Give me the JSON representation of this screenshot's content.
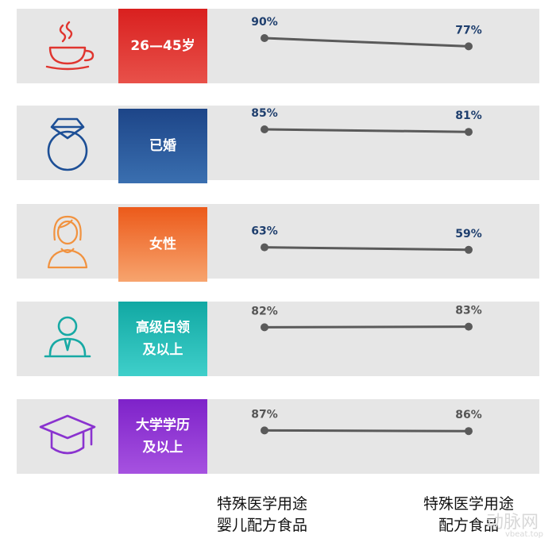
{
  "chart_data": {
    "type": "line",
    "x": [
      "特殊医学用途\n婴儿配方食品",
      "特殊医学用途\n配方食品"
    ],
    "ylim": [
      0,
      100
    ],
    "categories": [
      {
        "label": "26—45岁",
        "icon": "teacup-icon",
        "color_top": "#d9201f",
        "color_bottom": "#e8514a",
        "values": [
          90,
          77
        ],
        "labels": [
          "90%",
          "77%"
        ],
        "label_color": "#1f3f6e"
      },
      {
        "label": "已婚",
        "icon": "ring-icon",
        "color_top": "#1d4588",
        "color_bottom": "#3a6fb0",
        "values": [
          85,
          81
        ],
        "labels": [
          "85%",
          "81%"
        ],
        "label_color": "#1f3f6e"
      },
      {
        "label": "女性",
        "icon": "woman-icon",
        "color_top": "#ec5a1a",
        "color_bottom": "#f7a46e",
        "values": [
          63,
          59
        ],
        "labels": [
          "63%",
          "59%"
        ],
        "label_color": "#1f3f6e"
      },
      {
        "label": "高级白领\n及以上",
        "icon": "person-icon",
        "color_top": "#11a8a3",
        "color_bottom": "#3fcfca",
        "values": [
          82,
          83
        ],
        "labels": [
          "82%",
          "83%"
        ],
        "label_color": "#555555"
      },
      {
        "label": "大学学历\n及以上",
        "icon": "graduation-cap-icon",
        "color_top": "#7e22c9",
        "color_bottom": "#a652e0",
        "values": [
          87,
          86
        ],
        "labels": [
          "87%",
          "86%"
        ],
        "label_color": "#555555"
      }
    ]
  },
  "footer": {
    "left": "特殊医学用途\n婴儿配方食品",
    "right": "特殊医学用途\n配方食品"
  },
  "watermark": {
    "main": "动脉网",
    "sub": "vbeat.top"
  },
  "colors": {
    "line": "#5a5a5a",
    "row_bg": "#e6e6e6"
  }
}
